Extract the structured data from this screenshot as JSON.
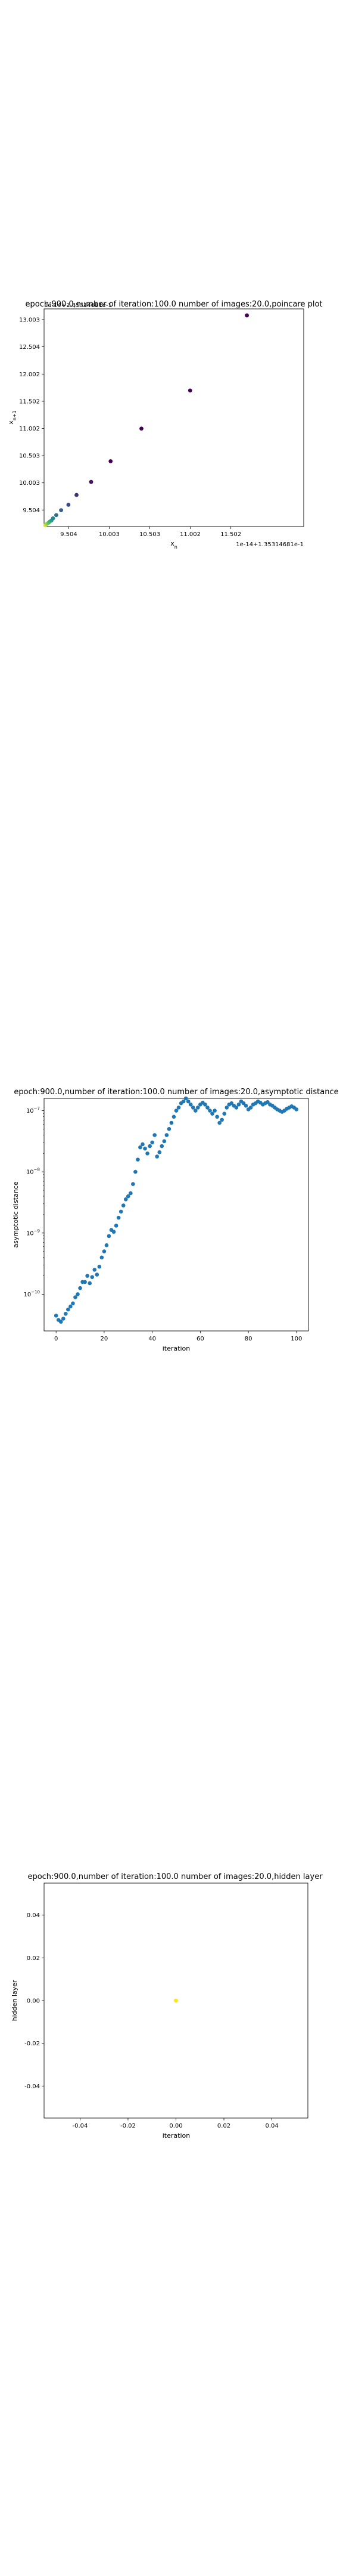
{
  "chart_data": [
    {
      "type": "scatter",
      "title": "epoch:900.0,number of iteration:100.0 number of images:20.0,poincare plot",
      "xlabel": "x",
      "xlabel_sub": "n",
      "ylabel": "x",
      "ylabel_sub": "n+1",
      "x_ticks": [
        "9.504",
        "10.003",
        "10.503",
        "11.002",
        "11.502"
      ],
      "x_tick_values": [
        9.504,
        10.003,
        10.503,
        11.002,
        11.502
      ],
      "y_ticks": [
        "9.504",
        "10.003",
        "10.503",
        "11.002",
        "11.502",
        "12.002",
        "12.504",
        "13.003"
      ],
      "y_tick_values": [
        9.504,
        10.003,
        10.503,
        11.002,
        11.502,
        12.002,
        12.504,
        13.003
      ],
      "x_offset_text": "1e-14+1.35314681e-1",
      "y_offset_text": "1e-14+1.35314681e-1",
      "xlim": [
        9.2,
        12.4
      ],
      "ylim": [
        9.2,
        13.2
      ],
      "colormap": "viridis",
      "x": [
        9.215,
        9.225,
        9.24,
        9.255,
        9.27,
        9.29,
        9.31,
        9.35,
        9.41,
        9.5,
        9.6,
        9.78,
        10.02,
        10.4,
        11.0,
        11.7
      ],
      "y": [
        9.225,
        9.24,
        9.255,
        9.27,
        9.29,
        9.31,
        9.35,
        9.41,
        9.5,
        9.6,
        9.78,
        10.02,
        10.4,
        11.0,
        11.7,
        13.08
      ],
      "color_frac": [
        0.97,
        0.9,
        0.82,
        0.75,
        0.65,
        0.55,
        0.45,
        0.38,
        0.3,
        0.22,
        0.15,
        0.05,
        0.0,
        0.0,
        0.0,
        0.0
      ]
    },
    {
      "type": "scatter",
      "title": "epoch:900.0,number of iteration:100.0  number of images:20.0,asymptotic distance",
      "xlabel": "iteration",
      "ylabel": "asymptotic distance",
      "y_scale": "log",
      "x_ticks": [
        "0",
        "20",
        "40",
        "60",
        "80",
        "100"
      ],
      "x_tick_values": [
        0,
        20,
        40,
        60,
        80,
        100
      ],
      "y_tick_exponents": [
        -10,
        -9,
        -8,
        -7
      ],
      "xlim": [
        -5,
        105
      ],
      "ylim_exponent": [
        -10.6,
        -6.8
      ],
      "color": "#1f77b4",
      "x": [
        0,
        1,
        2,
        3,
        4,
        5,
        6,
        7,
        8,
        9,
        10,
        11,
        12,
        13,
        14,
        15,
        16,
        17,
        18,
        19,
        20,
        21,
        22,
        23,
        24,
        25,
        26,
        27,
        28,
        29,
        30,
        31,
        32,
        33,
        34,
        35,
        36,
        37,
        38,
        39,
        40,
        41,
        42,
        43,
        44,
        45,
        46,
        47,
        48,
        49,
        50,
        51,
        52,
        53,
        54,
        55,
        56,
        57,
        58,
        59,
        60,
        61,
        62,
        63,
        64,
        65,
        66,
        67,
        68,
        69,
        70,
        71,
        72,
        73,
        74,
        75,
        76,
        77,
        78,
        79,
        80,
        81,
        82,
        83,
        84,
        85,
        86,
        87,
        88,
        89,
        90,
        91,
        92,
        93,
        94,
        95,
        96,
        97,
        98,
        99,
        100
      ],
      "log10_y": [
        -10.35,
        -10.42,
        -10.45,
        -10.4,
        -10.32,
        -10.25,
        -10.2,
        -10.15,
        -10.05,
        -10.0,
        -9.9,
        -9.8,
        -9.8,
        -9.7,
        -9.82,
        -9.72,
        -9.6,
        -9.68,
        -9.55,
        -9.4,
        -9.3,
        -9.2,
        -9.05,
        -8.95,
        -8.98,
        -8.88,
        -8.75,
        -8.65,
        -8.55,
        -8.45,
        -8.4,
        -8.35,
        -8.2,
        -8.0,
        -7.8,
        -7.6,
        -7.55,
        -7.62,
        -7.7,
        -7.58,
        -7.52,
        -7.4,
        -7.75,
        -7.68,
        -7.58,
        -7.5,
        -7.4,
        -7.3,
        -7.2,
        -7.1,
        -7.0,
        -6.95,
        -6.88,
        -6.85,
        -6.8,
        -6.85,
        -6.9,
        -6.95,
        -7.0,
        -6.95,
        -6.9,
        -6.87,
        -6.9,
        -6.95,
        -7.0,
        -7.05,
        -7.0,
        -7.1,
        -7.2,
        -7.15,
        -7.05,
        -6.95,
        -6.9,
        -6.88,
        -6.92,
        -6.95,
        -6.9,
        -6.85,
        -6.88,
        -6.92,
        -6.98,
        -6.95,
        -6.9,
        -6.88,
        -6.85,
        -6.87,
        -6.9,
        -6.88,
        -6.86,
        -6.9,
        -6.92,
        -6.95,
        -6.98,
        -7.0,
        -7.02,
        -7.0,
        -6.97,
        -6.95,
        -6.93,
        -6.95,
        -6.98
      ]
    },
    {
      "type": "scatter",
      "title": "epoch:900.0,number of iteration:100.0  number of images:20.0,hidden layer",
      "xlabel": "iteration",
      "ylabel": "hidden layer",
      "x_ticks": [
        "-0.04",
        "-0.02",
        "0.00",
        "0.02",
        "0.04"
      ],
      "x_tick_values": [
        -0.04,
        -0.02,
        0.0,
        0.02,
        0.04
      ],
      "y_ticks": [
        "0.04",
        "0.02",
        "0.00",
        "-0.02",
        "-0.04"
      ],
      "y_tick_values": [
        0.04,
        0.02,
        0.0,
        -0.02,
        -0.04
      ],
      "xlim": [
        -0.055,
        0.055
      ],
      "ylim": [
        -0.055,
        0.055
      ],
      "points": [
        {
          "x": 0.0,
          "y": 0.0,
          "color": "#fde725"
        }
      ]
    }
  ]
}
